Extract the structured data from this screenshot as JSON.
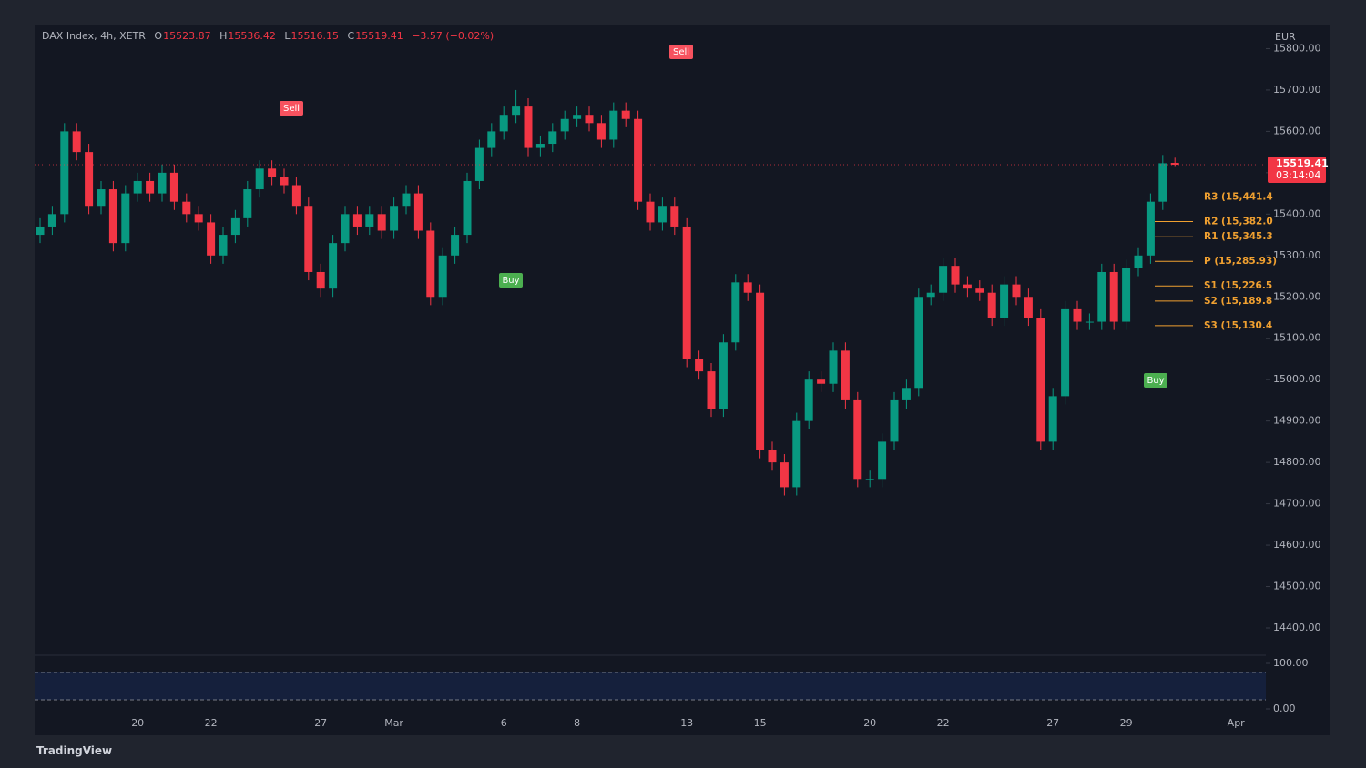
{
  "chart_data": {
    "type": "candlestick",
    "symbol": "DAX Index, 4h, XETR",
    "ohlc_letters": [
      "O",
      "H",
      "L",
      "C"
    ],
    "change": "−3.57 (−0.02%)",
    "currency": "EUR",
    "countdown": "03:14:04",
    "brand": "TradingView",
    "up_color": "#089981",
    "down_color": "#f23645",
    "pivot_color": "#f0a030",
    "grid": false,
    "categories": [
      null,
      null,
      null,
      null,
      null,
      null,
      null,
      null,
      "20",
      null,
      null,
      null,
      null,
      null,
      "22",
      null,
      null,
      null,
      null,
      null,
      null,
      null,
      null,
      "27",
      null,
      null,
      null,
      null,
      null,
      "Mar",
      null,
      null,
      null,
      null,
      null,
      null,
      null,
      null,
      "6",
      null,
      null,
      null,
      null,
      null,
      "8",
      null,
      null,
      null,
      null,
      null,
      null,
      null,
      null,
      "13",
      null,
      null,
      null,
      null,
      null,
      "15",
      null,
      null,
      null,
      null,
      null,
      null,
      null,
      null,
      "20",
      null,
      null,
      null,
      null,
      null,
      "22",
      null,
      null,
      null,
      null,
      null,
      null,
      null,
      null,
      "27",
      null,
      null,
      null,
      null,
      null,
      "29",
      null,
      null,
      null,
      null,
      null,
      null,
      null,
      null,
      "Apr"
    ],
    "open": [
      15350,
      15370,
      15400,
      15600,
      15550,
      15420,
      15460,
      15330,
      15450,
      15480,
      15450,
      15500,
      15430,
      15400,
      15380,
      15300,
      15350,
      15390,
      15460,
      15510,
      15490,
      15470,
      15420,
      15260,
      15220,
      15330,
      15400,
      15370,
      15400,
      15360,
      15420,
      15450,
      15360,
      15200,
      15300,
      15350,
      15480,
      15560,
      15600,
      15640,
      15660,
      15560,
      15570,
      15600,
      15630,
      15640,
      15620,
      15580,
      15650,
      15630,
      15430,
      15380,
      15420,
      15370,
      15050,
      15020,
      14930,
      15090,
      15235,
      15210,
      14830,
      14800,
      14740,
      14900,
      15000,
      14990,
      15070,
      14950,
      14760,
      14760,
      14850,
      14950,
      14980,
      15200,
      15210,
      15275,
      15230,
      15220,
      15210,
      15150,
      15230,
      15200,
      15150,
      14850,
      14960,
      15170,
      15140,
      15140,
      15260,
      15140,
      15270,
      15300,
      15430,
      15523.87,
      null,
      null,
      null,
      null,
      null
    ],
    "high": [
      15390,
      15420,
      15620,
      15620,
      15570,
      15480,
      15480,
      15470,
      15500,
      15500,
      15520,
      15520,
      15450,
      15420,
      15400,
      15370,
      15410,
      15480,
      15530,
      15530,
      15510,
      15490,
      15440,
      15280,
      15350,
      15420,
      15420,
      15420,
      15420,
      15440,
      15470,
      15470,
      15380,
      15320,
      15370,
      15500,
      15580,
      15620,
      15660,
      15700,
      15680,
      15590,
      15620,
      15650,
      15660,
      15660,
      15640,
      15670,
      15670,
      15650,
      15450,
      15440,
      15440,
      15390,
      15070,
      15040,
      15110,
      15255,
      15255,
      15230,
      14850,
      14820,
      14920,
      15020,
      15020,
      15090,
      15090,
      14970,
      14780,
      14870,
      14970,
      15000,
      15220,
      15230,
      15295,
      15295,
      15250,
      15240,
      15230,
      15250,
      15250,
      15220,
      15170,
      14980,
      15190,
      15190,
      15160,
      15280,
      15280,
      15290,
      15320,
      15450,
      15543,
      15536.42,
      null,
      null,
      null,
      null,
      null
    ],
    "low": [
      15330,
      15350,
      15380,
      15530,
      15400,
      15400,
      15310,
      15310,
      15430,
      15430,
      15430,
      15410,
      15380,
      15360,
      15280,
      15280,
      15330,
      15370,
      15440,
      15470,
      15450,
      15400,
      15240,
      15200,
      15200,
      15310,
      15350,
      15350,
      15340,
      15340,
      15400,
      15340,
      15180,
      15180,
      15280,
      15330,
      15460,
      15540,
      15580,
      15620,
      15540,
      15540,
      15550,
      15580,
      15610,
      15600,
      15560,
      15560,
      15610,
      15410,
      15360,
      15360,
      15350,
      15030,
      15000,
      14910,
      14910,
      15070,
      15190,
      14810,
      14780,
      14720,
      14720,
      14880,
      14970,
      14970,
      14930,
      14740,
      14740,
      14740,
      14830,
      14930,
      14960,
      15180,
      15190,
      15210,
      15200,
      15190,
      15130,
      15130,
      15180,
      15130,
      14830,
      14830,
      14940,
      15120,
      15120,
      15120,
      15120,
      15120,
      15250,
      15280,
      15410,
      15516.15,
      null,
      null,
      null,
      null,
      null
    ],
    "close": [
      15370,
      15400,
      15600,
      15550,
      15420,
      15460,
      15330,
      15450,
      15480,
      15450,
      15500,
      15430,
      15400,
      15380,
      15300,
      15350,
      15390,
      15460,
      15510,
      15490,
      15470,
      15420,
      15260,
      15220,
      15330,
      15400,
      15370,
      15400,
      15360,
      15420,
      15450,
      15360,
      15200,
      15300,
      15350,
      15480,
      15560,
      15600,
      15640,
      15660,
      15560,
      15570,
      15600,
      15630,
      15640,
      15620,
      15580,
      15650,
      15630,
      15430,
      15380,
      15420,
      15370,
      15050,
      15020,
      14930,
      15090,
      15235,
      15210,
      14830,
      14800,
      14740,
      14900,
      15000,
      14990,
      15070,
      14950,
      14760,
      14760,
      14850,
      14950,
      14980,
      15200,
      15210,
      15275,
      15230,
      15220,
      15210,
      15150,
      15230,
      15200,
      15150,
      14850,
      14960,
      15170,
      15140,
      15140,
      15260,
      15140,
      15270,
      15300,
      15430,
      15523,
      15519.41,
      null,
      null,
      null,
      null,
      null
    ],
    "ylim": [
      14334,
      15856
    ],
    "yticks": [
      {
        "value": 14400,
        "label": "14400.00"
      },
      {
        "value": 14500,
        "label": "14500.00"
      },
      {
        "value": 14600,
        "label": "14600.00"
      },
      {
        "value": 14700,
        "label": "14700.00"
      },
      {
        "value": 14800,
        "label": "14800.00"
      },
      {
        "value": 14900,
        "label": "14900.00"
      },
      {
        "value": 15000,
        "label": "15000.00"
      },
      {
        "value": 15100,
        "label": "15100.00"
      },
      {
        "value": 15200,
        "label": "15200.00"
      },
      {
        "value": 15300,
        "label": "15300.00"
      },
      {
        "value": 15400,
        "label": "15400.00"
      },
      {
        "value": 15500,
        "label": "15500.00"
      },
      {
        "value": 15600,
        "label": "15600.00"
      },
      {
        "value": 15700,
        "label": "15700.00"
      },
      {
        "value": 15800,
        "label": "15800.00"
      }
    ],
    "pivots": [
      {
        "label": "R3 (15,441.4",
        "value": 15441.4
      },
      {
        "label": "R2 (15,382.0",
        "value": 15382.0
      },
      {
        "label": "R1 (15,345.3",
        "value": 15345.3
      },
      {
        "label": "P (15,285.93)",
        "value": 15285.93
      },
      {
        "label": "S1 (15,226.5",
        "value": 15226.5
      },
      {
        "label": "S2 (15,189.8",
        "value": 15189.8
      },
      {
        "label": "S3 (15,130.4",
        "value": 15130.4
      }
    ],
    "signals": [
      "Sell",
      "Sell",
      "Buy",
      "Buy"
    ],
    "oscillator": {
      "ylim": [
        -18,
        114
      ],
      "yticks": [
        {
          "value": 100,
          "label": "100.00"
        },
        {
          "value": 0,
          "label": "0.00"
        }
      ],
      "band": [
        20,
        80
      ]
    }
  }
}
